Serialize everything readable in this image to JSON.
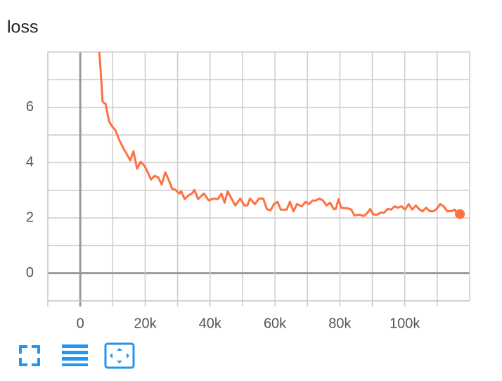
{
  "chart_data": {
    "type": "line",
    "title": "loss",
    "x": [
      5000,
      6270,
      6900,
      7800,
      8900,
      9900,
      10800,
      12100,
      13200,
      14700,
      15400,
      16400,
      17500,
      18600,
      19700,
      20800,
      21800,
      22900,
      24000,
      25100,
      26200,
      27200,
      28300,
      29400,
      30500,
      31100,
      32200,
      33300,
      34400,
      35200,
      36300,
      38100,
      39600,
      40900,
      42400,
      43500,
      44500,
      45400,
      46700,
      47800,
      49300,
      50600,
      51500,
      52300,
      53800,
      55100,
      56400,
      57500,
      58600,
      59700,
      60800,
      61800,
      63600,
      64600,
      65700,
      66800,
      68300,
      69400,
      70500,
      71600,
      72600,
      73700,
      74800,
      75900,
      77000,
      78100,
      78700,
      79600,
      80400,
      82400,
      83500,
      84500,
      86100,
      87400,
      88400,
      89300,
      90400,
      91500,
      92500,
      93600,
      94700,
      95800,
      96900,
      97900,
      99000,
      100100,
      101200,
      102300,
      103400,
      104400,
      105500,
      106600,
      107700,
      108800,
      109800,
      110900,
      112000,
      113100,
      114200,
      115400,
      116500,
      117000
    ],
    "series": [
      {
        "color": "#ff7043",
        "values": [
          9.5,
          7.35,
          6.2,
          6.12,
          5.48,
          5.3,
          5.18,
          4.8,
          4.54,
          4.23,
          4.08,
          4.41,
          3.78,
          4.03,
          3.9,
          3.65,
          3.39,
          3.52,
          3.47,
          3.21,
          3.65,
          3.39,
          3.06,
          3.01,
          2.88,
          2.96,
          2.68,
          2.81,
          2.88,
          3.01,
          2.68,
          2.88,
          2.63,
          2.7,
          2.68,
          2.88,
          2.55,
          2.96,
          2.68,
          2.45,
          2.7,
          2.45,
          2.45,
          2.7,
          2.5,
          2.7,
          2.7,
          2.32,
          2.27,
          2.5,
          2.58,
          2.3,
          2.3,
          2.58,
          2.24,
          2.5,
          2.42,
          2.58,
          2.5,
          2.63,
          2.63,
          2.7,
          2.63,
          2.45,
          2.55,
          2.32,
          2.32,
          2.68,
          2.37,
          2.35,
          2.3,
          2.09,
          2.12,
          2.07,
          2.17,
          2.32,
          2.12,
          2.12,
          2.19,
          2.19,
          2.32,
          2.3,
          2.42,
          2.37,
          2.42,
          2.3,
          2.5,
          2.3,
          2.45,
          2.32,
          2.24,
          2.37,
          2.24,
          2.24,
          2.32,
          2.5,
          2.42,
          2.24,
          2.24,
          2.3,
          2.07,
          2.14
        ]
      }
    ],
    "xlim": [
      -10000,
      120000
    ],
    "xticks": [
      {
        "value": 0,
        "label": "0"
      },
      {
        "value": 20000,
        "label": "20k"
      },
      {
        "value": 40000,
        "label": "40k"
      },
      {
        "value": 60000,
        "label": "60k"
      },
      {
        "value": 80000,
        "label": "80k"
      },
      {
        "value": 100000,
        "label": "100k"
      }
    ],
    "x_minor_ticks": [
      -10000,
      10000,
      30000,
      50000,
      70000,
      90000,
      110000
    ],
    "ylim": [
      -1,
      8
    ],
    "yticks": [
      0,
      2,
      4,
      6
    ],
    "y_minor_ticks": [
      -1,
      1,
      3,
      5,
      7
    ],
    "grid": true
  }
}
